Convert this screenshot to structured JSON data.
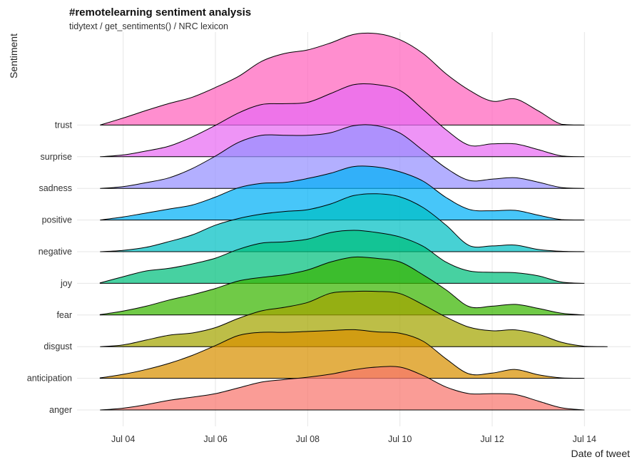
{
  "chart_data": {
    "type": "area",
    "subtype": "ridgeline",
    "title": "#remotelearning sentiment analysis",
    "subtitle": "tidytext / get_sentiments() / NRC lexicon",
    "xlabel": "Date of tweet",
    "ylabel": "Sentiment",
    "x_ticks": [
      "Jul 04",
      "Jul 06",
      "Jul 08",
      "Jul 10",
      "Jul 12",
      "Jul 14"
    ],
    "xlim": [
      "2020-07-03",
      "2020-07-15"
    ],
    "grid": true,
    "legend": "none",
    "x": [
      "2020-07-03 12:00",
      "2020-07-04 00:00",
      "2020-07-04 12:00",
      "2020-07-05 00:00",
      "2020-07-05 12:00",
      "2020-07-06 00:00",
      "2020-07-06 12:00",
      "2020-07-07 00:00",
      "2020-07-07 12:00",
      "2020-07-08 00:00",
      "2020-07-08 12:00",
      "2020-07-09 00:00",
      "2020-07-09 12:00",
      "2020-07-10 00:00",
      "2020-07-10 12:00",
      "2020-07-11 00:00",
      "2020-07-11 12:00",
      "2020-07-12 00:00",
      "2020-07-12 12:00",
      "2020-07-13 00:00",
      "2020-07-13 12:00",
      "2020-07-14 00:00",
      "2020-07-14 12:00"
    ],
    "series": [
      {
        "name": "anger",
        "color": "#F8766D",
        "values": [
          0.0,
          0.04,
          0.12,
          0.22,
          0.29,
          0.37,
          0.5,
          0.63,
          0.69,
          0.74,
          0.81,
          0.91,
          0.97,
          0.97,
          0.78,
          0.52,
          0.37,
          0.37,
          0.35,
          0.2,
          0.05,
          0.0,
          null
        ]
      },
      {
        "name": "anticipation",
        "color": "#D89000",
        "values": [
          0.01,
          0.09,
          0.2,
          0.34,
          0.52,
          0.74,
          0.97,
          1.04,
          1.04,
          1.06,
          1.08,
          1.1,
          1.05,
          1.02,
          0.84,
          0.44,
          0.1,
          0.12,
          0.2,
          0.08,
          0.01,
          0.0,
          null
        ]
      },
      {
        "name": "disgust",
        "color": "#A3A500",
        "values": [
          0.0,
          0.04,
          0.15,
          0.26,
          0.31,
          0.43,
          0.64,
          0.81,
          0.89,
          1.0,
          1.21,
          1.25,
          1.25,
          1.2,
          0.95,
          0.67,
          0.44,
          0.36,
          0.38,
          0.28,
          0.1,
          0.01,
          0.0
        ]
      },
      {
        "name": "fear",
        "color": "#39B600",
        "values": [
          0.01,
          0.09,
          0.2,
          0.34,
          0.46,
          0.6,
          0.77,
          0.85,
          0.91,
          1.02,
          1.2,
          1.31,
          1.28,
          1.2,
          0.91,
          0.57,
          0.19,
          0.2,
          0.24,
          0.15,
          0.04,
          0.0,
          null
        ]
      },
      {
        "name": "joy",
        "color": "#00BF7D",
        "values": [
          0.01,
          0.15,
          0.28,
          0.34,
          0.44,
          0.57,
          0.77,
          0.91,
          0.94,
          1.0,
          1.15,
          1.2,
          1.15,
          1.05,
          0.84,
          0.48,
          0.28,
          0.25,
          0.24,
          0.17,
          0.03,
          0.0,
          null
        ]
      },
      {
        "name": "negative",
        "color": "#00BFC4",
        "values": [
          0.0,
          0.03,
          0.1,
          0.23,
          0.38,
          0.6,
          0.75,
          0.85,
          0.91,
          0.95,
          1.08,
          1.27,
          1.31,
          1.24,
          1.0,
          0.6,
          0.14,
          0.13,
          0.15,
          0.05,
          0.01,
          0.0,
          null
        ]
      },
      {
        "name": "positive",
        "color": "#00B0F6",
        "values": [
          0.0,
          0.07,
          0.16,
          0.25,
          0.34,
          0.52,
          0.73,
          0.83,
          0.85,
          0.94,
          1.06,
          1.21,
          1.2,
          1.09,
          0.88,
          0.51,
          0.24,
          0.21,
          0.22,
          0.11,
          0.01,
          0.0,
          null
        ]
      },
      {
        "name": "sadness",
        "color": "#9590FF",
        "values": [
          0.0,
          0.04,
          0.13,
          0.24,
          0.45,
          0.73,
          1.04,
          1.2,
          1.2,
          1.2,
          1.26,
          1.42,
          1.42,
          1.25,
          0.86,
          0.46,
          0.18,
          0.21,
          0.24,
          0.14,
          0.02,
          0.0,
          null
        ]
      },
      {
        "name": "surprise",
        "color": "#E76BF3",
        "values": [
          0.0,
          0.04,
          0.13,
          0.24,
          0.45,
          0.71,
          0.99,
          1.18,
          1.2,
          1.23,
          1.43,
          1.63,
          1.63,
          1.5,
          1.07,
          0.61,
          0.26,
          0.29,
          0.29,
          0.16,
          0.02,
          0.0,
          null
        ]
      },
      {
        "name": "trust",
        "color": "#FF62BC",
        "values": [
          0.0,
          0.16,
          0.33,
          0.49,
          0.63,
          0.85,
          1.1,
          1.44,
          1.62,
          1.7,
          1.86,
          2.05,
          2.07,
          1.93,
          1.62,
          1.16,
          0.79,
          0.54,
          0.59,
          0.32,
          0.02,
          0.0,
          null
        ]
      }
    ]
  }
}
